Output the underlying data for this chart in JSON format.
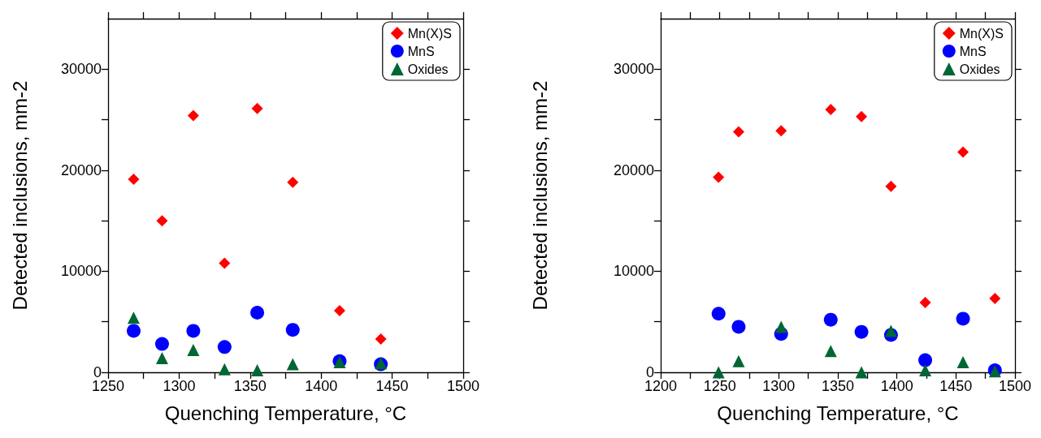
{
  "chart_data": [
    {
      "type": "scatter",
      "xlabel": "Quenching Temperature, °C",
      "ylabel": "Detected inclusions, mm-2",
      "xlim": [
        1250,
        1500
      ],
      "ylim": [
        0,
        35000
      ],
      "xticks": [
        1250,
        {
          "value": 1275,
          "label": null
        },
        1300,
        {
          "value": 1325,
          "label": null
        },
        1350,
        {
          "value": 1375,
          "label": null
        },
        1400,
        {
          "value": 1425,
          "label": null
        },
        1450,
        {
          "value": 1475,
          "label": null
        },
        1500
      ],
      "yticks": [
        0,
        {
          "value": 5000,
          "label": null
        },
        10000,
        {
          "value": 15000,
          "label": null
        },
        20000,
        {
          "value": 25000,
          "label": null
        },
        30000
      ],
      "grid": false,
      "legend": "top right",
      "x": [
        1268,
        1288,
        1310,
        1332,
        1355,
        1380,
        1413,
        1442
      ],
      "series": [
        {
          "name": "Mn(X)S",
          "color": "#ff0000",
          "marker": "diamond",
          "values": [
            19100,
            15000,
            25400,
            10800,
            26100,
            18800,
            6100,
            3300
          ]
        },
        {
          "name": "MnS",
          "color": "#0000ff",
          "marker": "circle",
          "values": [
            4100,
            2800,
            4100,
            2500,
            5900,
            4200,
            1100,
            800
          ]
        },
        {
          "name": "Oxides",
          "color": "#006633",
          "marker": "triangle",
          "values": [
            5400,
            1400,
            2200,
            300,
            200,
            800,
            1000,
            900
          ]
        }
      ]
    },
    {
      "type": "scatter",
      "xlabel": "Quenching Temperature, °C",
      "ylabel": "Detected inclusions, mm-2",
      "xlim": [
        1200,
        1500
      ],
      "ylim": [
        0,
        35000
      ],
      "xticks": [
        1200,
        {
          "value": 1225,
          "label": null
        },
        1250,
        {
          "value": 1275,
          "label": null
        },
        1300,
        {
          "value": 1325,
          "label": null
        },
        1350,
        {
          "value": 1375,
          "label": null
        },
        1400,
        {
          "value": 1425,
          "label": null
        },
        1450,
        {
          "value": 1475,
          "label": null
        },
        1500
      ],
      "yticks": [
        0,
        {
          "value": 5000,
          "label": null
        },
        10000,
        {
          "value": 15000,
          "label": null
        },
        20000,
        {
          "value": 25000,
          "label": null
        },
        30000
      ],
      "grid": false,
      "legend": "top right",
      "x": [
        1249,
        1266,
        1302,
        1344,
        1370,
        1395,
        1424,
        1456,
        1483
      ],
      "series": [
        {
          "name": "Mn(X)S",
          "color": "#ff0000",
          "marker": "diamond",
          "values": [
            19300,
            23800,
            23900,
            26000,
            25300,
            18400,
            6900,
            21800,
            7300
          ]
        },
        {
          "name": "MnS",
          "color": "#0000ff",
          "marker": "circle",
          "values": [
            5800,
            4500,
            3800,
            5200,
            4000,
            3700,
            1200,
            5300,
            200
          ]
        },
        {
          "name": "Oxides",
          "color": "#006633",
          "marker": "triangle",
          "values": [
            0,
            1100,
            4500,
            2100,
            0,
            4100,
            200,
            1000,
            100
          ]
        }
      ]
    }
  ]
}
